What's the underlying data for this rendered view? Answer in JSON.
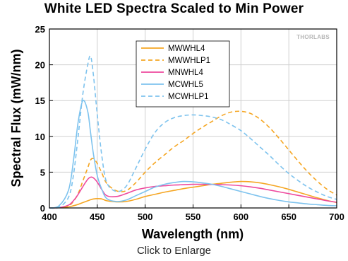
{
  "chart_data": {
    "type": "line",
    "title": "White LED Spectra Scaled to Min Power",
    "xlabel": "Wavelength (nm)",
    "ylabel": "Spectral Flux (mW/nm)",
    "xlim": [
      400,
      700
    ],
    "ylim": [
      0,
      25
    ],
    "xticks": [
      400,
      450,
      500,
      550,
      600,
      650,
      700
    ],
    "yticks": [
      0,
      5,
      10,
      15,
      20,
      25
    ],
    "grid": true,
    "legend_position": "top-center",
    "x": [
      400,
      410,
      420,
      425,
      430,
      435,
      440,
      443,
      446,
      450,
      455,
      460,
      470,
      480,
      490,
      500,
      510,
      520,
      530,
      540,
      550,
      560,
      570,
      580,
      590,
      600,
      610,
      620,
      630,
      640,
      650,
      660,
      670,
      680,
      690,
      700
    ],
    "series": [
      {
        "name": "MWWHL4",
        "color": "#f5a623",
        "dash": "solid",
        "values": [
          0,
          0.05,
          0.15,
          0.3,
          0.5,
          0.75,
          1.0,
          1.15,
          1.25,
          1.3,
          1.25,
          1.0,
          0.85,
          0.9,
          1.2,
          1.6,
          1.9,
          2.2,
          2.45,
          2.7,
          2.9,
          3.1,
          3.3,
          3.45,
          3.6,
          3.7,
          3.65,
          3.5,
          3.25,
          2.95,
          2.6,
          2.2,
          1.8,
          1.4,
          1.05,
          0.75
        ]
      },
      {
        "name": "MWWHLP1",
        "color": "#f5a623",
        "dash": "dash",
        "values": [
          0,
          0.05,
          0.3,
          0.9,
          2.0,
          3.8,
          5.6,
          6.7,
          6.9,
          6.2,
          4.8,
          3.4,
          2.4,
          2.4,
          3.5,
          5.0,
          6.3,
          7.4,
          8.5,
          9.4,
          10.4,
          11.3,
          12.1,
          12.9,
          13.4,
          13.5,
          13.2,
          12.4,
          11.2,
          9.7,
          8.1,
          6.5,
          5.0,
          3.7,
          2.6,
          1.8
        ]
      },
      {
        "name": "MNWHL4",
        "color": "#ee4a9e",
        "dash": "solid",
        "values": [
          0,
          0.05,
          0.4,
          1.0,
          1.9,
          3.0,
          4.0,
          4.3,
          4.2,
          3.6,
          2.5,
          1.7,
          1.6,
          2.0,
          2.5,
          2.8,
          3.0,
          3.1,
          3.2,
          3.25,
          3.3,
          3.3,
          3.28,
          3.25,
          3.2,
          3.1,
          2.95,
          2.75,
          2.5,
          2.25,
          2.0,
          1.75,
          1.5,
          1.25,
          1.0,
          0.8
        ]
      },
      {
        "name": "MCWHL5",
        "color": "#7ec3ee",
        "dash": "solid",
        "values": [
          0,
          0.3,
          2.5,
          6.5,
          12.0,
          15.0,
          13.5,
          10.5,
          7.5,
          4.5,
          2.5,
          1.3,
          0.9,
          1.1,
          1.7,
          2.3,
          2.9,
          3.3,
          3.55,
          3.7,
          3.65,
          3.5,
          3.3,
          3.0,
          2.65,
          2.3,
          1.95,
          1.6,
          1.3,
          1.05,
          0.85,
          0.7,
          0.55,
          0.45,
          0.35,
          0.3
        ]
      },
      {
        "name": "MCWHLP1",
        "color": "#7ec3ee",
        "dash": "dash",
        "values": [
          0,
          0.1,
          1.5,
          4.5,
          10.0,
          16.0,
          20.0,
          21.2,
          18.5,
          13.0,
          7.0,
          3.5,
          2.3,
          3.0,
          5.5,
          8.2,
          10.5,
          11.9,
          12.6,
          12.9,
          13.0,
          12.9,
          12.7,
          12.3,
          11.6,
          10.8,
          9.7,
          8.5,
          7.3,
          6.0,
          4.8,
          3.8,
          2.9,
          2.2,
          1.6,
          1.2
        ]
      }
    ]
  },
  "brand_mark": "THORLABS",
  "link_text": "Click to Enlarge"
}
